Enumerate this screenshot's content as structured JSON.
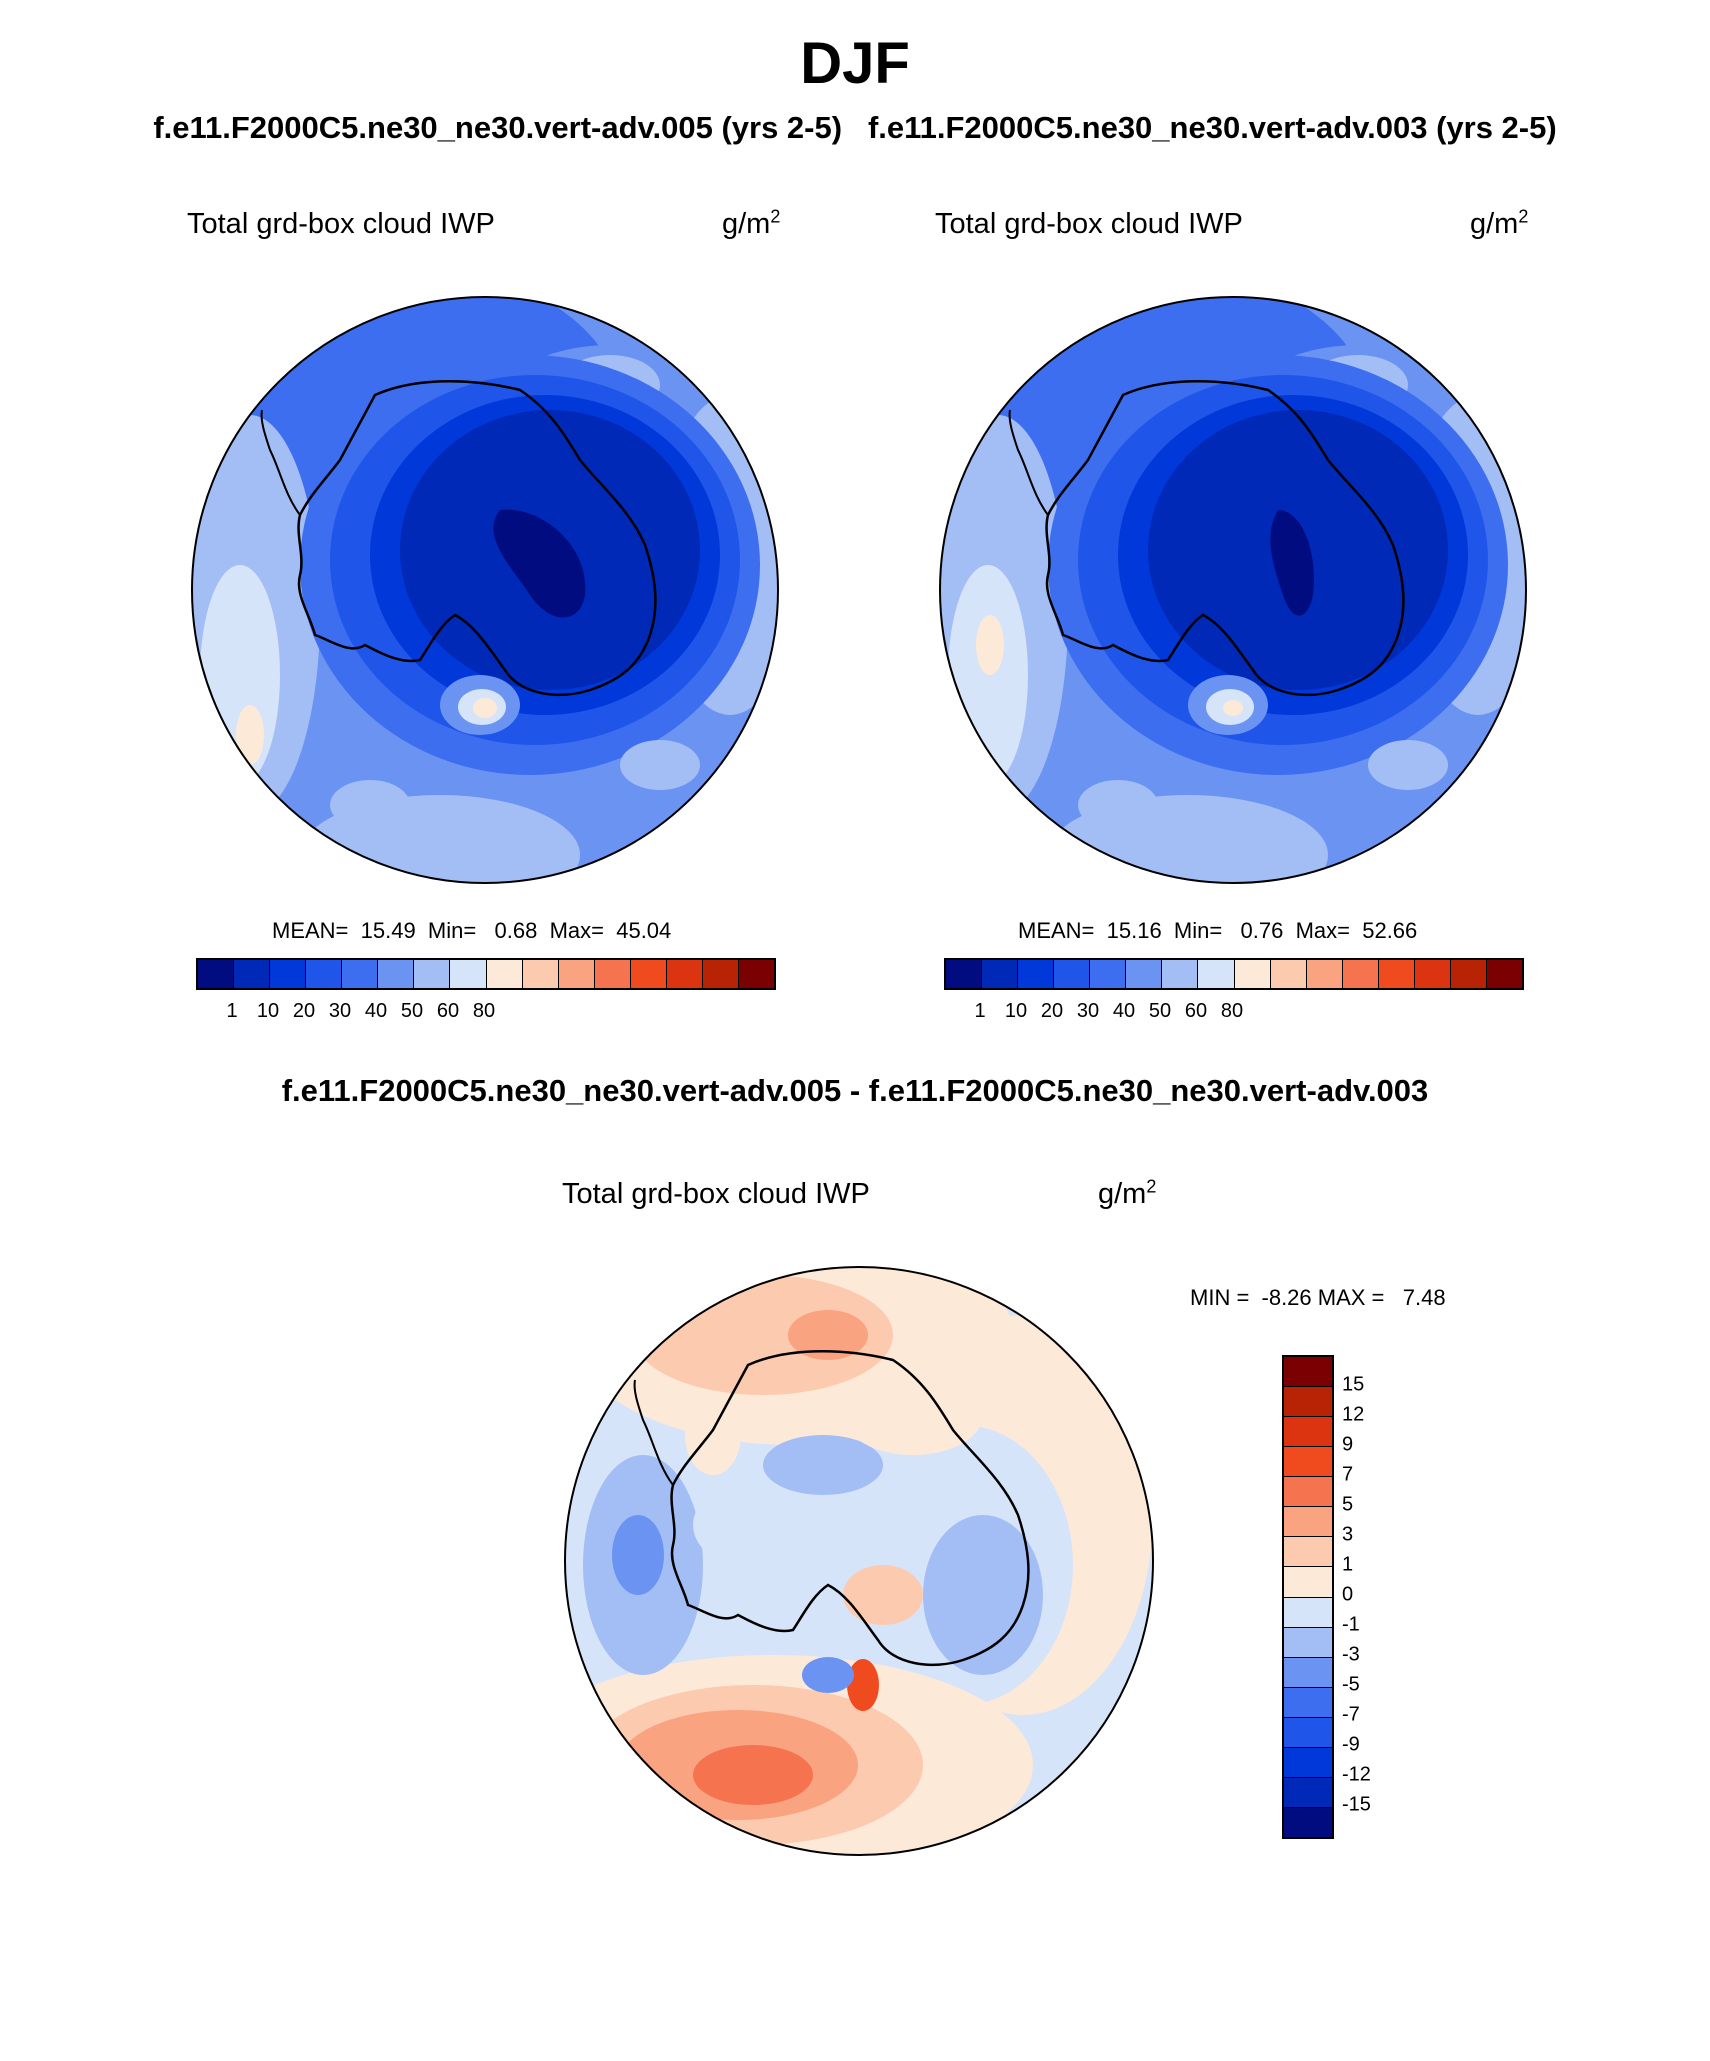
{
  "title": "DJF",
  "panel_titles": {
    "left": "f.e11.F2000C5.ne30_ne30.vert-adv.005 (yrs 2-5)",
    "right": "f.e11.F2000C5.ne30_ne30.vert-adv.003 (yrs 2-5)"
  },
  "panel_left": {
    "variable": "Total grd-box cloud IWP",
    "unit_base": "g/m",
    "unit_exp": "2",
    "stats": "MEAN=  15.49  Min=   0.68  Max=  45.04"
  },
  "panel_right": {
    "variable": "Total grd-box cloud IWP",
    "unit_base": "g/m",
    "unit_exp": "2",
    "stats": "MEAN=  15.16  Min=   0.76  Max=  52.66"
  },
  "colorbar_top": {
    "colors": [
      "#000c80",
      "#0029b8",
      "#0038d9",
      "#1f55e8",
      "#3d6ef0",
      "#6b94f2",
      "#a3bdf5",
      "#d6e4fa",
      "#fde9d8",
      "#fccaae",
      "#f9a381",
      "#f5744f",
      "#f04a1f",
      "#dc3410",
      "#b82205",
      "#7a0002"
    ],
    "labels": [
      "1",
      "10",
      "20",
      "30",
      "40",
      "50",
      "60",
      "80"
    ]
  },
  "difference": {
    "title": "f.e11.F2000C5.ne30_ne30.vert-adv.005 - f.e11.F2000C5.ne30_ne30.vert-adv.003",
    "variable": "Total grd-box cloud IWP",
    "unit_base": "g/m",
    "unit_exp": "2",
    "minmax": "MIN =  -8.26 MAX =   7.48",
    "colors": [
      "#7a0002",
      "#b82205",
      "#dc3410",
      "#f04a1f",
      "#f5744f",
      "#f9a381",
      "#fccaae",
      "#fde9d8",
      "#d6e4fa",
      "#a3bdf5",
      "#6b94f2",
      "#3d6ef0",
      "#1f55e8",
      "#0038d9",
      "#0029b8",
      "#000c80"
    ],
    "labels": [
      "15",
      "12",
      "9",
      "7",
      "5",
      "3",
      "1",
      "0",
      "-1",
      "-3",
      "-5",
      "-7",
      "-9",
      "-12",
      "-15"
    ]
  }
}
